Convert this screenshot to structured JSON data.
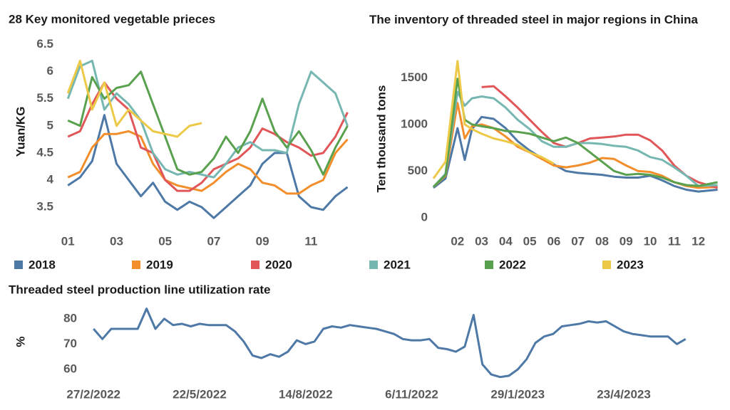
{
  "chart_data": [
    {
      "type": "line",
      "title": "28 Key monitored vegetable prieces",
      "y_label": "Yuan/KG",
      "x": [
        1,
        1.5,
        2,
        2.5,
        3,
        3.5,
        4,
        4.5,
        5,
        5.5,
        6,
        6.5,
        7,
        7.5,
        8,
        8.5,
        9,
        9.5,
        10,
        10.5,
        11,
        11.5,
        12,
        12.5
      ],
      "xlim": [
        0.7,
        13.1
      ],
      "xticks": [
        {
          "value": 1,
          "label": "01"
        },
        {
          "value": 3,
          "label": "03"
        },
        {
          "value": 5,
          "label": "05"
        },
        {
          "value": 7,
          "label": "07"
        },
        {
          "value": 9,
          "label": "09"
        },
        11
      ],
      "ylim": [
        3.25,
        6.6
      ],
      "yticks": [
        3.5,
        4.0,
        4.5,
        5.0,
        5.5,
        6.0,
        6.5
      ],
      "series": [
        {
          "name": "2018",
          "color": "#4e79a7",
          "values": [
            3.9,
            4.05,
            4.35,
            5.2,
            4.3,
            4.0,
            3.7,
            3.95,
            3.6,
            3.45,
            3.6,
            3.5,
            3.3,
            3.5,
            3.7,
            3.9,
            4.3,
            4.5,
            4.5,
            3.7,
            3.5,
            3.45,
            3.7,
            3.87
          ]
        },
        {
          "name": "2019",
          "color": "#f28e2b",
          "values": [
            4.05,
            4.15,
            4.6,
            4.85,
            4.85,
            4.9,
            4.8,
            4.3,
            4.0,
            3.9,
            3.85,
            3.8,
            3.95,
            4.15,
            4.3,
            4.2,
            3.95,
            3.9,
            3.75,
            3.75,
            3.9,
            4.0,
            4.5,
            4.75
          ]
        },
        {
          "name": "2020",
          "color": "#e15759",
          "values": [
            4.8,
            4.9,
            5.4,
            5.8,
            5.5,
            5.3,
            4.6,
            4.5,
            4.0,
            3.8,
            3.8,
            3.95,
            4.2,
            4.3,
            4.4,
            4.6,
            4.95,
            4.85,
            4.7,
            4.6,
            4.45,
            4.5,
            4.8,
            5.25
          ]
        },
        {
          "name": "2021",
          "color": "#76b7b2",
          "values": [
            5.5,
            6.1,
            6.2,
            5.3,
            5.6,
            5.4,
            5.1,
            4.5,
            4.2,
            4.1,
            4.15,
            4.1,
            4.05,
            4.3,
            4.6,
            4.7,
            4.55,
            4.55,
            4.5,
            5.4,
            6.0,
            5.8,
            5.6,
            5.0
          ]
        },
        {
          "name": "2022",
          "color": "#59a14f",
          "values": [
            5.1,
            5.0,
            5.9,
            5.5,
            5.7,
            5.75,
            6.0,
            5.4,
            4.8,
            4.2,
            4.1,
            4.15,
            4.4,
            4.8,
            4.5,
            4.9,
            5.5,
            4.9,
            4.6,
            4.9,
            4.55,
            4.1,
            4.6,
            5.0
          ]
        },
        {
          "name": "2023",
          "color": "#edc948",
          "values": [
            5.6,
            6.2,
            5.3,
            5.8,
            5.0,
            5.3,
            5.1,
            4.9,
            4.85,
            4.8,
            5.0,
            5.05,
            null,
            null,
            null,
            null,
            null,
            null,
            null,
            null,
            null,
            null,
            null,
            null
          ]
        }
      ]
    },
    {
      "type": "line",
      "title": "The inventory of threaded steel in major regions in China",
      "y_label": "Ten thousand tons",
      "x": [
        1,
        1.5,
        2,
        2.3,
        2.6,
        3,
        3.5,
        4,
        4.5,
        5,
        5.5,
        6,
        6.5,
        7,
        7.5,
        8,
        8.5,
        9,
        9.5,
        10,
        10.5,
        11,
        11.5,
        12,
        12.8
      ],
      "xlim": [
        1.0,
        12.9
      ],
      "xticks": [
        {
          "value": 2,
          "label": "02"
        },
        {
          "value": 3,
          "label": "03"
        },
        {
          "value": 4,
          "label": "04"
        },
        {
          "value": 5,
          "label": "05"
        },
        {
          "value": 6,
          "label": "06"
        },
        {
          "value": 7,
          "label": "07"
        },
        {
          "value": 8,
          "label": "08"
        },
        {
          "value": 9,
          "label": "09"
        },
        10,
        11,
        12
      ],
      "ylim": [
        -70,
        1800
      ],
      "yticks": [
        0,
        500,
        1000,
        1500
      ],
      "series": [
        {
          "name": "2018",
          "color": "#4e79a7",
          "values": [
            320,
            420,
            960,
            620,
            950,
            1080,
            1060,
            960,
            820,
            720,
            640,
            570,
            500,
            480,
            470,
            460,
            440,
            430,
            430,
            450,
            400,
            340,
            300,
            280,
            300
          ]
        },
        {
          "name": "2019",
          "color": "#f28e2b",
          "values": [
            330,
            450,
            1230,
            850,
            980,
            1000,
            960,
            870,
            760,
            700,
            630,
            560,
            540,
            560,
            590,
            640,
            630,
            560,
            500,
            490,
            450,
            380,
            340,
            320,
            330
          ]
        },
        {
          "name": "2020",
          "color": "#e15759",
          "values": [
            null,
            null,
            null,
            null,
            null,
            1400,
            1410,
            1300,
            1180,
            1050,
            920,
            800,
            760,
            800,
            850,
            860,
            870,
            890,
            890,
            830,
            720,
            560,
            450,
            380,
            320
          ]
        },
        {
          "name": "2021",
          "color": "#76b7b2",
          "values": [
            330,
            470,
            1350,
            1200,
            1280,
            1300,
            1280,
            1180,
            1050,
            950,
            820,
            760,
            760,
            800,
            800,
            790,
            770,
            760,
            720,
            650,
            620,
            540,
            450,
            340,
            350
          ]
        },
        {
          "name": "2022",
          "color": "#59a14f",
          "values": [
            330,
            460,
            1490,
            1050,
            1000,
            980,
            960,
            930,
            920,
            900,
            860,
            820,
            860,
            800,
            700,
            600,
            500,
            460,
            470,
            460,
            430,
            380,
            350,
            340,
            380
          ]
        },
        {
          "name": "2023",
          "color": "#edc948",
          "values": [
            420,
            600,
            1680,
            1000,
            950,
            900,
            850,
            820,
            780,
            700,
            650,
            580,
            null,
            null,
            null,
            null,
            null,
            null,
            null,
            null,
            null,
            null,
            null,
            null,
            null
          ]
        }
      ]
    },
    {
      "type": "line",
      "title": "Threaded steel production line utilization rate",
      "y_label": "%",
      "categories": [
        "27/2/2022",
        null,
        null,
        null,
        null,
        null,
        null,
        null,
        null,
        null,
        null,
        null,
        "22/5/2022",
        null,
        null,
        null,
        null,
        null,
        null,
        null,
        null,
        null,
        null,
        null,
        "14/8/2022",
        null,
        null,
        null,
        null,
        null,
        null,
        null,
        null,
        null,
        null,
        null,
        "6/11/2022",
        null,
        null,
        null,
        null,
        null,
        null,
        null,
        null,
        null,
        null,
        null,
        "29/1/2023",
        null,
        null,
        null,
        null,
        null,
        null,
        null,
        null,
        null,
        null,
        null,
        "23/4/2023",
        null,
        null,
        null,
        null,
        null,
        null,
        null
      ],
      "ylim": [
        55.5,
        85
      ],
      "yticks": [
        60,
        70,
        80
      ],
      "series": [
        {
          "name": "utilization",
          "color": "#4e79a7",
          "values": [
            76,
            72,
            76,
            76,
            76,
            76,
            84,
            76,
            80,
            77.5,
            78,
            77,
            78,
            77.5,
            77.5,
            77.5,
            75,
            71,
            65.5,
            64.5,
            66,
            65,
            67,
            71.5,
            70,
            71,
            76,
            77,
            76.5,
            77.5,
            77,
            76.5,
            76,
            75,
            74,
            72,
            71.5,
            71.5,
            72,
            68.5,
            68,
            67,
            69,
            81.5,
            62,
            58,
            57,
            57.5,
            60,
            64,
            70.5,
            73,
            74,
            77,
            77.5,
            78,
            79,
            78.5,
            79,
            77,
            75,
            74,
            73.5,
            73,
            73,
            73,
            70,
            72
          ]
        }
      ]
    }
  ]
}
